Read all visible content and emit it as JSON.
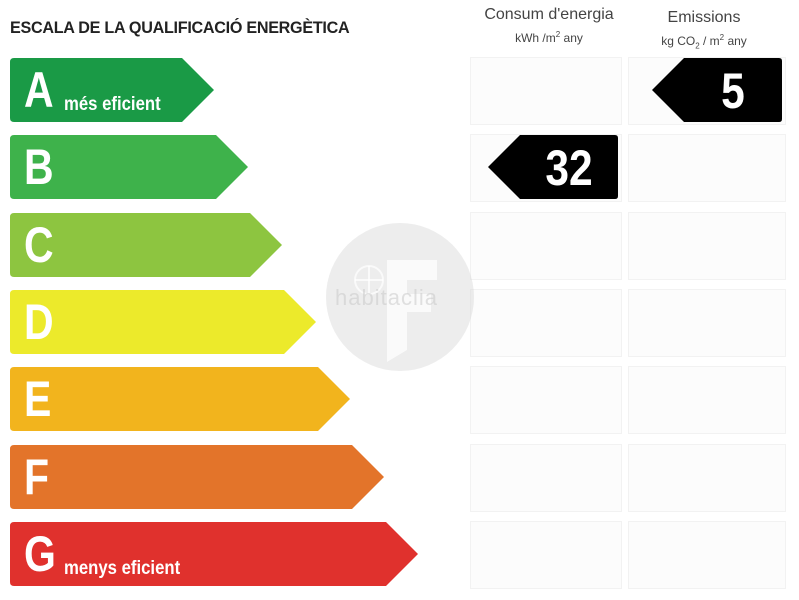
{
  "header": {
    "title": "ESCALA DE LA QUALIFICACIÓ ENERGÈTICA",
    "consum_title": "Consum d'energia",
    "consum_unit_pre": "kWh /m",
    "consum_unit_sup": "2",
    "consum_unit_post": " any",
    "emissions_title": "Emissions",
    "emissions_unit_pre": "kg CO",
    "emissions_unit_sub": "2",
    "emissions_unit_mid": " / m",
    "emissions_unit_sup": "2",
    "emissions_unit_post": " any"
  },
  "ratings": [
    {
      "letter": "A",
      "label": "més eficient",
      "color": "#1a9a46"
    },
    {
      "letter": "B",
      "label": "",
      "color": "#3eb24b"
    },
    {
      "letter": "C",
      "label": "",
      "color": "#8dc540"
    },
    {
      "letter": "D",
      "label": "",
      "color": "#ecea2b"
    },
    {
      "letter": "E",
      "label": "",
      "color": "#f2b41d"
    },
    {
      "letter": "F",
      "label": "",
      "color": "#e3742a"
    },
    {
      "letter": "G",
      "label": "menys eficient",
      "color": "#e0312d"
    }
  ],
  "consum": {
    "value": "32",
    "rating_index": 1,
    "color": "#000000"
  },
  "emissions": {
    "value": "5",
    "rating_index": 0,
    "color": "#000000"
  },
  "watermark": {
    "text": "habitaclia"
  }
}
